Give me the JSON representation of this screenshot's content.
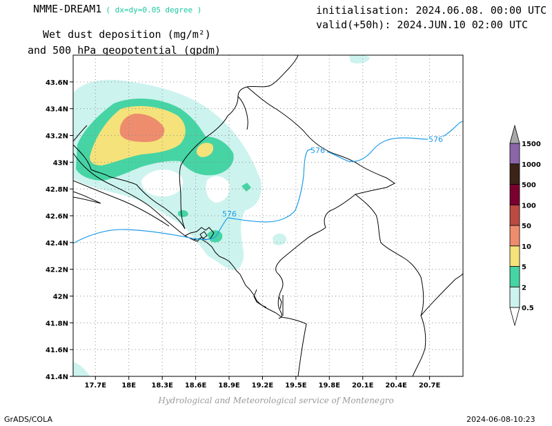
{
  "header": {
    "model": "NMME-DREAM1",
    "resolution": "( dx=dy=0.05 degree )",
    "init": "initialisation: 2024.06.08. 00:00 UTC",
    "valid": "valid(+50h): 2024.JUN.10 02:00 UTC",
    "title1": "Wet dust deposition (mg/m²)",
    "title2": "and 500 hPa geopotential (gpdm)"
  },
  "map": {
    "lon_range": [
      17.5,
      21.0
    ],
    "lat_range": [
      41.4,
      43.8
    ],
    "lon_ticks": [
      "17.7E",
      "18E",
      "18.3E",
      "18.6E",
      "18.9E",
      "19.2E",
      "19.5E",
      "19.8E",
      "20.1E",
      "20.4E",
      "20.7E"
    ],
    "lat_ticks": [
      "43.6N",
      "43.4N",
      "43.2N",
      "43N",
      "42.8N",
      "42.6N",
      "42.4N",
      "42.2N",
      "42N",
      "41.8N",
      "41.6N",
      "41.4N"
    ],
    "contour_labels": [
      "576",
      "576",
      "576"
    ],
    "contour_color": "#1e9be8",
    "border_color": "#000000",
    "grid": true
  },
  "legend": {
    "levels": [
      "0.5",
      "2",
      "5",
      "10",
      "50",
      "100",
      "500",
      "1000",
      "1500"
    ],
    "colors": [
      "#cdf3ee",
      "#46d4a4",
      "#f5e27a",
      "#ee8c6e",
      "#bb4a42",
      "#7a0030",
      "#3b2317",
      "#8a66a8",
      "#a8a8a8"
    ]
  },
  "credit": "Hydrological and Meteorological service of Montenegro",
  "footer": {
    "left": "GrADS/COLA",
    "right": "2024-06-08-10:23"
  }
}
